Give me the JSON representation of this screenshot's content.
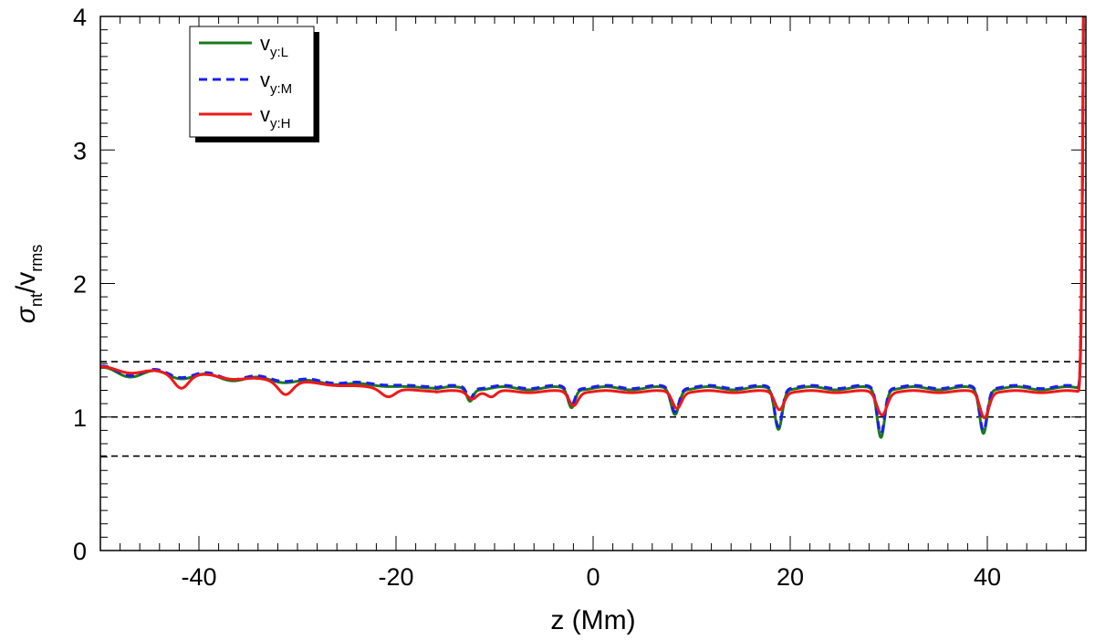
{
  "chart_data": {
    "type": "line",
    "xlabel": "z (Mm)",
    "ylabel": {
      "base": "σ",
      "base_sub": "nt",
      "sep": "/v",
      "sep_sub": "rms"
    },
    "xlim": [
      -50,
      50
    ],
    "ylim": [
      0,
      4
    ],
    "x_ticks": [
      {
        "value": -40,
        "label": "-40"
      },
      {
        "value": -20,
        "label": "-20"
      },
      {
        "value": 0,
        "label": "0"
      },
      {
        "value": 20,
        "label": "20"
      },
      {
        "value": 40,
        "label": "40"
      }
    ],
    "y_ticks": [
      {
        "value": 0,
        "label": "0"
      },
      {
        "value": 1,
        "label": "1"
      },
      {
        "value": 2,
        "label": "2"
      },
      {
        "value": 3,
        "label": "3"
      },
      {
        "value": 4,
        "label": "4"
      }
    ],
    "x_minor_step": 2,
    "y_minor_step": 0.1,
    "reference_lines": [
      1.414,
      1.0,
      0.707
    ],
    "legend_placement": "top-left",
    "series": [
      {
        "name": "v",
        "name_sub": "y:L",
        "color": "#1a7a1a",
        "dash": "solid",
        "base": 1.215,
        "base_ripple": 0.012,
        "base_ripple_period": 5.2,
        "left_start": 1.34,
        "left_ripple_amp": 0.065,
        "left_ripple_period": 5.2,
        "dips": [
          [
            -12.5,
            0.09,
            0.32
          ],
          [
            -2.2,
            0.14,
            0.35
          ],
          [
            8.3,
            0.19,
            0.4
          ],
          [
            18.8,
            0.3,
            0.38
          ],
          [
            29.2,
            0.36,
            0.38
          ],
          [
            39.6,
            0.33,
            0.38
          ]
        ],
        "edge": [
          49.2,
          49.75,
          4.0
        ]
      },
      {
        "name": "v",
        "name_sub": "y:M",
        "color": "#1d1df0",
        "dash": "dashed",
        "base": 1.225,
        "base_ripple": 0.012,
        "base_ripple_period": 5.2,
        "left_start": 1.35,
        "left_ripple_amp": 0.065,
        "left_ripple_period": 5.2,
        "dips": [
          [
            -12.5,
            0.08,
            0.32
          ],
          [
            -2.2,
            0.13,
            0.35
          ],
          [
            8.3,
            0.18,
            0.4
          ],
          [
            18.8,
            0.29,
            0.38
          ],
          [
            29.2,
            0.34,
            0.38
          ],
          [
            39.6,
            0.32,
            0.38
          ]
        ],
        "edge": [
          49.2,
          49.75,
          4.0
        ]
      },
      {
        "name": "v",
        "name_sub": "y:H",
        "color": "#f01818",
        "dash": "solid",
        "base": 1.19,
        "base_ripple": 0.008,
        "base_ripple_period": 5.2,
        "left_start": 1.36,
        "left_ripple_amp": 0.035,
        "left_ripple_period": 5.2,
        "dips": [
          [
            -41.8,
            0.09,
            0.7
          ],
          [
            -31.2,
            0.09,
            0.7
          ],
          [
            -20.8,
            0.06,
            0.7
          ],
          [
            -12.3,
            0.05,
            0.45
          ],
          [
            -10.3,
            0.04,
            0.45
          ],
          [
            -2.0,
            0.1,
            0.45
          ],
          [
            8.5,
            0.12,
            0.45
          ],
          [
            18.9,
            0.13,
            0.45
          ],
          [
            29.3,
            0.17,
            0.5
          ],
          [
            39.7,
            0.19,
            0.45
          ]
        ],
        "edge": [
          49.2,
          49.75,
          4.0
        ]
      }
    ]
  }
}
